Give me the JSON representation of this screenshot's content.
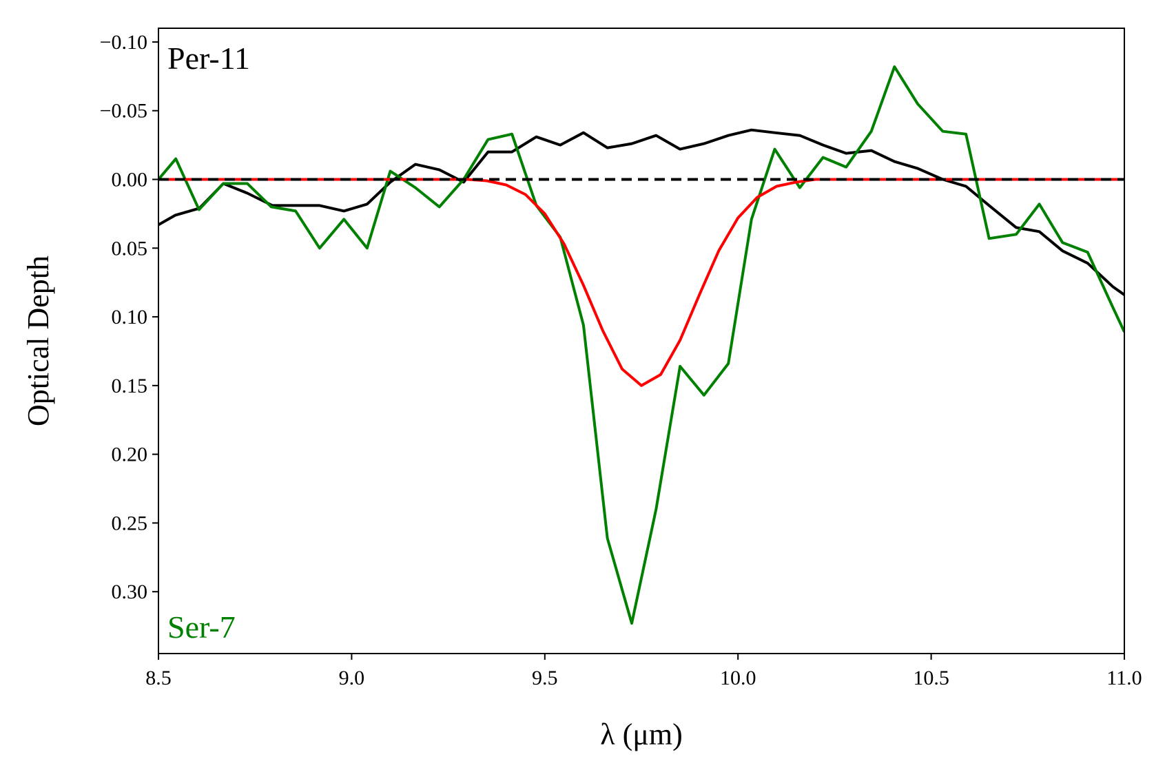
{
  "chart_data": {
    "type": "line",
    "xlabel": "λ (μm)",
    "ylabel": "Optical Depth",
    "xlim": [
      8.5,
      11.0
    ],
    "ylim": [
      0.345,
      -0.11
    ],
    "y_inverted": true,
    "x_ticks": [
      8.5,
      9.0,
      9.5,
      10.0,
      10.5,
      11.0
    ],
    "x_tick_labels": [
      "8.5",
      "9.0",
      "9.5",
      "10.0",
      "10.5",
      "11.0"
    ],
    "y_ticks": [
      -0.1,
      -0.05,
      0.0,
      0.05,
      0.1,
      0.15,
      0.2,
      0.25,
      0.3
    ],
    "y_tick_labels": [
      "−0.10",
      "−0.05",
      "0.00",
      "0.05",
      "0.10",
      "0.15",
      "0.20",
      "0.25",
      "0.30"
    ],
    "grid": false,
    "annotations": [
      {
        "text": "Per-11",
        "color": "#000000",
        "location": "top-left"
      },
      {
        "text": "Ser-7",
        "color": "#008000",
        "location": "bottom-left"
      }
    ],
    "series": [
      {
        "color": "#000000",
        "style": "solid",
        "x": [
          8.5,
          8.544,
          8.606,
          8.668,
          8.73,
          8.795,
          8.855,
          8.917,
          8.98,
          9.04,
          9.1,
          9.165,
          9.227,
          9.29,
          9.353,
          9.415,
          9.478,
          9.54,
          9.6,
          9.662,
          9.725,
          9.788,
          9.85,
          9.912,
          9.975,
          10.035,
          10.095,
          10.16,
          10.22,
          10.28,
          10.345,
          10.405,
          10.465,
          10.53,
          10.59,
          10.65,
          10.72,
          10.78,
          10.84,
          10.905,
          10.97,
          11.0
        ],
        "y": [
          0.033,
          0.026,
          0.021,
          0.003,
          0.01,
          0.019,
          0.019,
          0.019,
          0.023,
          0.018,
          0.002,
          -0.011,
          -0.007,
          0.002,
          -0.02,
          -0.02,
          -0.031,
          -0.025,
          -0.034,
          -0.023,
          -0.026,
          -0.032,
          -0.022,
          -0.026,
          -0.032,
          -0.036,
          -0.034,
          -0.032,
          -0.025,
          -0.019,
          -0.021,
          -0.013,
          -0.008,
          0.0,
          0.005,
          0.019,
          0.035,
          0.038,
          0.052,
          0.061,
          0.078,
          0.084
        ]
      },
      {
        "color": "#008000",
        "style": "solid",
        "x": [
          8.5,
          8.545,
          8.605,
          8.668,
          8.73,
          8.792,
          8.855,
          8.917,
          8.98,
          9.04,
          9.1,
          9.165,
          9.227,
          9.29,
          9.353,
          9.415,
          9.478,
          9.54,
          9.6,
          9.662,
          9.725,
          9.788,
          9.85,
          9.912,
          9.975,
          10.035,
          10.095,
          10.16,
          10.22,
          10.28,
          10.345,
          10.405,
          10.465,
          10.53,
          10.59,
          10.65,
          10.72,
          10.78,
          10.84,
          10.905,
          10.97,
          11.0
        ],
        "y": [
          0.0,
          -0.015,
          0.022,
          0.003,
          0.003,
          0.02,
          0.023,
          0.05,
          0.029,
          0.05,
          -0.006,
          0.006,
          0.02,
          0.0,
          -0.029,
          -0.033,
          0.019,
          0.042,
          0.106,
          0.261,
          0.323,
          0.24,
          0.136,
          0.157,
          0.134,
          0.029,
          -0.022,
          0.006,
          -0.016,
          -0.009,
          -0.035,
          -0.082,
          -0.055,
          -0.035,
          -0.033,
          0.043,
          0.04,
          0.018,
          0.046,
          0.053,
          0.093,
          0.111
        ]
      },
      {
        "color": "#ff0000",
        "style": "solid",
        "x": [
          8.5,
          9.0,
          9.3,
          9.35,
          9.4,
          9.45,
          9.5,
          9.55,
          9.6,
          9.65,
          9.7,
          9.75,
          9.8,
          9.85,
          9.9,
          9.95,
          10.0,
          10.05,
          10.1,
          10.15,
          10.2,
          10.5,
          11.0
        ],
        "y": [
          0.0,
          0.0,
          0.0,
          0.001,
          0.004,
          0.011,
          0.025,
          0.047,
          0.077,
          0.11,
          0.138,
          0.15,
          0.142,
          0.117,
          0.084,
          0.052,
          0.028,
          0.013,
          0.005,
          0.002,
          0.0,
          0.0,
          0.0
        ]
      },
      {
        "color": "#000000",
        "style": "dashed",
        "x": [
          8.5,
          11.0
        ],
        "y": [
          0.0,
          0.0
        ]
      }
    ]
  }
}
